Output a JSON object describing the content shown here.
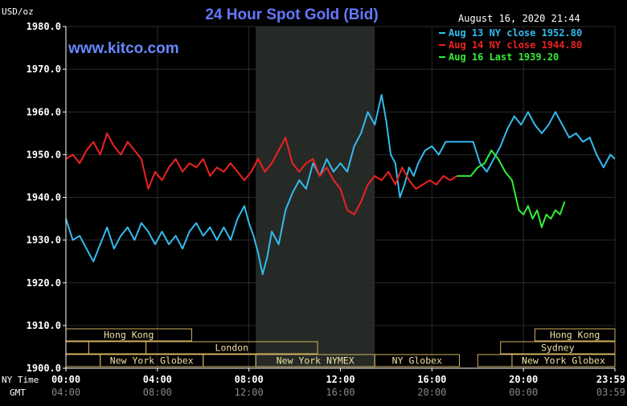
{
  "chart_data": {
    "type": "line",
    "title": "24 Hour Spot Gold (Bid)",
    "watermark": "www.kitco.com",
    "ylabel": "USD/oz",
    "timestamp": "August 16, 2020 21:44",
    "ylim": [
      1900,
      1980
    ],
    "xlim": [
      0,
      24
    ],
    "y_ticks": [
      {
        "value": 1980,
        "label": "1980.0"
      },
      {
        "value": 1970,
        "label": "1970.0"
      },
      {
        "value": 1960,
        "label": "1960.0"
      },
      {
        "value": 1950,
        "label": "1950.0"
      },
      {
        "value": 1940,
        "label": "1940.0"
      },
      {
        "value": 1930,
        "label": "1930.0"
      },
      {
        "value": 1920,
        "label": "1920.0"
      },
      {
        "value": 1910,
        "label": "1910.0"
      },
      {
        "value": 1900,
        "label": "1900.0"
      }
    ],
    "x_axis_labels": {
      "ny_label": "NY Time",
      "gmt_label": "GMT",
      "ny_ticks": [
        {
          "value": 0,
          "label": "00:00"
        },
        {
          "value": 4,
          "label": "04:00"
        },
        {
          "value": 8,
          "label": "08:00"
        },
        {
          "value": 12,
          "label": "12:00"
        },
        {
          "value": 16,
          "label": "16:00"
        },
        {
          "value": 20,
          "label": "20:00"
        },
        {
          "value": 24,
          "label": "23:59"
        }
      ],
      "gmt_ticks": [
        {
          "value": 0,
          "label": "04:00"
        },
        {
          "value": 4,
          "label": "08:00"
        },
        {
          "value": 8,
          "label": "12:00"
        },
        {
          "value": 12,
          "label": "16:00"
        },
        {
          "value": 16,
          "label": "20:00"
        },
        {
          "value": 20,
          "label": "00:00"
        },
        {
          "value": 24,
          "label": "03:59"
        }
      ]
    },
    "shaded_region": {
      "start": 8.3,
      "end": 13.5,
      "color": "#262a26"
    },
    "market_sessions": [
      {
        "label": "Hong Kong",
        "start": 0,
        "end": 5.5,
        "row": 0
      },
      {
        "label": "",
        "start": 0,
        "end": 1,
        "row": 1
      },
      {
        "label": "",
        "start": 1,
        "end": 3.5,
        "row": 1
      },
      {
        "label": "London",
        "start": 3.5,
        "end": 11,
        "row": 1
      },
      {
        "label": "",
        "start": 0,
        "end": 1.5,
        "row": 2
      },
      {
        "label": "New York Globex",
        "start": 1.5,
        "end": 6,
        "row": 2
      },
      {
        "label": "",
        "start": 6,
        "end": 8.3,
        "row": 2
      },
      {
        "label": "New York NYMEX",
        "start": 8.3,
        "end": 13.5,
        "row": 2
      },
      {
        "label": "NY Globex",
        "start": 13.5,
        "end": 17.2,
        "row": 2
      },
      {
        "label": "Hong Kong",
        "start": 20.5,
        "end": 24,
        "row": 0
      },
      {
        "label": "Sydney",
        "start": 19,
        "end": 24,
        "row": 1
      },
      {
        "label": "",
        "start": 18,
        "end": 19.5,
        "row": 2
      },
      {
        "label": "New York Globex",
        "start": 19.5,
        "end": 24,
        "row": 2
      }
    ],
    "series": [
      {
        "name": "Aug 13 NY close 1952.80",
        "color": "#33bbee",
        "x": [
          0,
          0.3,
          0.6,
          0.9,
          1.2,
          1.5,
          1.8,
          2.1,
          2.4,
          2.7,
          3.0,
          3.3,
          3.6,
          3.9,
          4.2,
          4.5,
          4.8,
          5.1,
          5.4,
          5.7,
          6.0,
          6.3,
          6.6,
          6.9,
          7.2,
          7.5,
          7.8,
          8.0,
          8.2,
          8.4,
          8.6,
          8.8,
          9.0,
          9.3,
          9.6,
          9.9,
          10.2,
          10.5,
          10.8,
          11.1,
          11.4,
          11.7,
          12.0,
          12.3,
          12.6,
          12.9,
          13.2,
          13.5,
          13.8,
          14.0,
          14.2,
          14.4,
          14.6,
          14.8,
          15.0,
          15.2,
          15.4,
          15.7,
          16.0,
          16.3,
          16.6,
          16.9,
          17.2,
          17.5,
          17.8,
          18.1,
          18.4,
          18.7,
          19.0,
          19.3,
          19.6,
          19.9,
          20.2,
          20.5,
          20.8,
          21.1,
          21.4,
          21.7,
          22.0,
          22.3,
          22.6,
          22.9,
          23.2,
          23.5,
          23.8,
          24.0
        ],
        "values": [
          1935,
          1930,
          1931,
          1928,
          1925,
          1929,
          1933,
          1928,
          1931,
          1933,
          1930,
          1934,
          1932,
          1929,
          1932,
          1929,
          1931,
          1928,
          1932,
          1934,
          1931,
          1933,
          1930,
          1933,
          1930,
          1935,
          1938,
          1934,
          1931,
          1927,
          1922,
          1926,
          1932,
          1929,
          1937,
          1941,
          1944,
          1942,
          1948,
          1945,
          1949,
          1946,
          1948,
          1946,
          1952,
          1955,
          1960,
          1957,
          1964,
          1958,
          1950,
          1948,
          1940,
          1943,
          1947,
          1945,
          1948,
          1951,
          1952,
          1950,
          1953,
          1953,
          1953,
          1953,
          1953,
          1948,
          1946,
          1949,
          1952,
          1956,
          1959,
          1957,
          1960,
          1957,
          1955,
          1957,
          1960,
          1957,
          1954,
          1955,
          1953,
          1954,
          1950,
          1947,
          1950,
          1949
        ]
      },
      {
        "name": "Aug 14 NY close 1944.80",
        "color": "#ee2222",
        "x": [
          0,
          0.3,
          0.6,
          0.9,
          1.2,
          1.5,
          1.8,
          2.1,
          2.4,
          2.7,
          3.0,
          3.3,
          3.6,
          3.9,
          4.2,
          4.5,
          4.8,
          5.1,
          5.4,
          5.7,
          6.0,
          6.3,
          6.6,
          6.9,
          7.2,
          7.5,
          7.8,
          8.1,
          8.4,
          8.7,
          9.0,
          9.3,
          9.6,
          9.9,
          10.2,
          10.5,
          10.8,
          11.1,
          11.4,
          11.7,
          12.0,
          12.3,
          12.6,
          12.9,
          13.2,
          13.5,
          13.8,
          14.1,
          14.4,
          14.7,
          15.0,
          15.3,
          15.6,
          15.9,
          16.2,
          16.5,
          16.8,
          17.1
        ],
        "values": [
          1949,
          1950,
          1948,
          1951,
          1953,
          1950,
          1955,
          1952,
          1950,
          1953,
          1951,
          1949,
          1942,
          1946,
          1944,
          1947,
          1949,
          1946,
          1948,
          1947,
          1949,
          1945,
          1947,
          1946,
          1948,
          1946,
          1944,
          1946,
          1949,
          1946,
          1948,
          1951,
          1954,
          1948,
          1946,
          1948,
          1949,
          1945,
          1947,
          1944,
          1942,
          1937,
          1936,
          1939,
          1943,
          1945,
          1944,
          1946,
          1943,
          1947,
          1944,
          1942,
          1943,
          1944,
          1943,
          1945,
          1944,
          1945
        ]
      },
      {
        "name": "Aug 16 Last 1939.20",
        "color": "#33ee33",
        "x": [
          17.1,
          17.4,
          17.7,
          18.0,
          18.3,
          18.6,
          18.9,
          19.2,
          19.5,
          19.8,
          20.0,
          20.2,
          20.4,
          20.6,
          20.8,
          21.0,
          21.2,
          21.4,
          21.6,
          21.8
        ],
        "values": [
          1945,
          1945,
          1945,
          1947,
          1948,
          1951,
          1949,
          1946,
          1944,
          1937,
          1936,
          1938,
          1935,
          1937,
          1933,
          1936,
          1935,
          1937,
          1936,
          1939
        ]
      }
    ]
  },
  "colors": {
    "background": "#000000",
    "plot_bg": "#000000",
    "grid": "#2a2a2a",
    "axis_text": "#ffffff",
    "title": "#6677ff",
    "watermark": "#6688ff",
    "session_border": "#d0b060",
    "session_text": "#f0e0a0"
  }
}
